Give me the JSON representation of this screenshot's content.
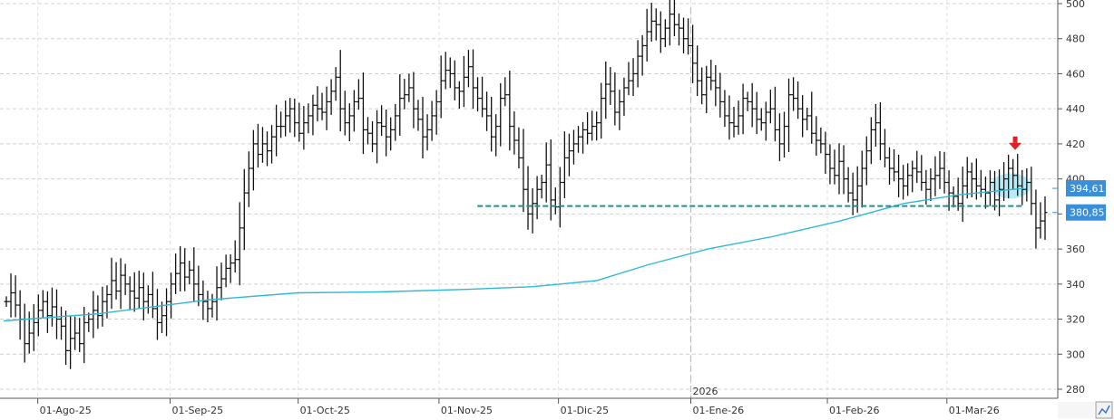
{
  "chart_data": {
    "type": "ohlc",
    "grid": true,
    "ylim": [
      275,
      502
    ],
    "y_ticks": [
      280,
      300,
      320,
      340,
      360,
      380,
      400,
      420,
      440,
      460,
      480,
      500
    ],
    "y_tick_labels": [
      "280",
      "300",
      "320",
      "340",
      "360",
      "380",
      "400",
      "420",
      "440",
      "460",
      "480",
      "500"
    ],
    "x_start": "2025-07-24",
    "x_end": "2026-03-25",
    "x_ticks": [
      {
        "date": "2025-08-01",
        "label": "01-Ago-25"
      },
      {
        "date": "2025-09-01",
        "label": "01-Sep-25"
      },
      {
        "date": "2025-10-01",
        "label": "01-Oct-25"
      },
      {
        "date": "2025-11-03",
        "label": "01-Nov-25"
      },
      {
        "date": "2025-12-01",
        "label": "01-Dic-25"
      },
      {
        "date": "2026-01-01",
        "label": "01-Ene-26"
      },
      {
        "date": "2026-02-02",
        "label": "01-Feb-26"
      },
      {
        "date": "2026-03-02",
        "label": "01-Mar-26"
      }
    ],
    "year_marker": {
      "date": "2026-01-01",
      "label": "2026"
    },
    "price_closes": [
      330,
      335,
      328,
      320,
      306,
      312,
      318,
      325,
      330,
      322,
      327,
      320,
      316,
      302,
      309,
      312,
      306,
      318,
      320,
      325,
      322,
      330,
      334,
      342,
      336,
      345,
      340,
      336,
      332,
      338,
      330,
      334,
      326,
      318,
      322,
      330,
      340,
      346,
      352,
      344,
      348,
      340,
      334,
      330,
      326,
      330,
      338,
      343,
      349,
      352,
      354,
      372,
      392,
      406,
      420,
      414,
      420,
      416,
      424,
      430,
      430,
      436,
      440,
      432,
      426,
      432,
      436,
      442,
      440,
      438,
      444,
      450,
      458,
      440,
      432,
      436,
      444,
      446,
      428,
      426,
      420,
      432,
      430,
      424,
      428,
      436,
      446,
      448,
      452,
      440,
      434,
      424,
      428,
      436,
      444,
      456,
      462,
      460,
      452,
      450,
      458,
      464,
      452,
      446,
      440,
      436,
      424,
      430,
      446,
      448,
      430,
      422,
      412,
      394,
      380,
      386,
      394,
      398,
      408,
      388,
      384,
      398,
      412,
      416,
      420,
      424,
      428,
      426,
      430,
      432,
      446,
      454,
      450,
      438,
      444,
      452,
      456,
      460,
      470,
      476,
      484,
      490,
      488,
      480,
      486,
      494,
      488,
      486,
      480,
      476,
      466,
      456,
      448,
      458,
      456,
      452,
      444,
      436,
      432,
      430,
      436,
      446,
      444,
      440,
      434,
      432,
      438,
      440,
      428,
      420,
      430,
      448,
      446,
      440,
      434,
      436,
      426,
      422,
      420,
      414,
      406,
      402,
      410,
      400,
      392,
      388,
      396,
      406,
      416,
      428,
      432,
      420,
      412,
      406,
      404,
      400,
      396,
      402,
      406,
      404,
      398,
      394,
      400,
      402,
      406,
      398,
      392,
      390,
      386,
      396,
      404,
      400,
      396,
      394,
      392,
      398,
      388,
      394,
      400,
      406,
      402,
      396,
      394,
      398,
      386,
      372,
      376,
      380.85
    ],
    "series": [
      {
        "name": "",
        "type": "line",
        "color": "#2fb8d4",
        "x": [
          "2025-07-24",
          "2025-08-15",
          "2025-09-10",
          "2025-10-01",
          "2025-10-20",
          "2025-11-10",
          "2025-11-25",
          "2025-12-10",
          "2025-12-22",
          "2026-01-05",
          "2026-01-20",
          "2026-02-05",
          "2026-02-20",
          "2026-03-05",
          "2026-03-20"
        ],
        "y": [
          319,
          323,
          331,
          335,
          335.5,
          337,
          338.5,
          342,
          351,
          360,
          367,
          376,
          386,
          391,
          394.61
        ]
      }
    ],
    "lines": [
      {
        "type": "support",
        "value": 384.5,
        "x_from": "2025-11-12",
        "x_to": "2026-03-20",
        "color": "#1f8f8f",
        "dashed": true
      }
    ],
    "price_tags": [
      {
        "value": 394.61,
        "label": "394,61",
        "color": "#3b8fd9"
      },
      {
        "value": 380.85,
        "label": "380,85",
        "color": "#3b8fd9"
      }
    ],
    "annotations": [
      {
        "type": "down-arrow",
        "date": "2026-03-18",
        "value": 418,
        "color": "#e02020"
      },
      {
        "type": "highlight-ellipse",
        "date": "2026-03-17",
        "value": 396,
        "color": "#aee8f2"
      }
    ]
  }
}
